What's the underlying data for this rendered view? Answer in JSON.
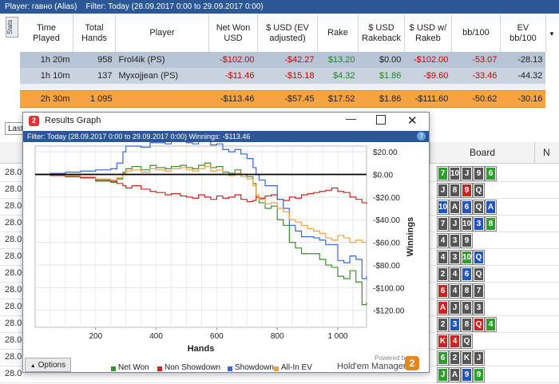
{
  "topbar": {
    "player_label": "Player:",
    "player_value": "гавно (Alias)",
    "filter_label": "Filter:",
    "filter_value": "Today (28.09.2017 0:00 to 29.09.2017 0:00)"
  },
  "stats_tab": "Stats",
  "table": {
    "headers": [
      "Time Played",
      "Total Hands",
      "Player",
      "Net Won USD",
      "$ USD (EV adjusted)",
      "Rake",
      "$ USD Rakeback",
      "$ USD w/ Rakeb",
      "bb/100",
      "EV bb/100"
    ],
    "rows": [
      [
        "1h 20m",
        "958",
        "Frol4ik (PS)",
        "-$102.00",
        "-$42.27",
        "$13.20",
        "$0.00",
        "-$102.00",
        "-53.07",
        "-28.13"
      ],
      [
        "1h 10m",
        "137",
        "Myxojjean (PS)",
        "-$11.46",
        "-$15.18",
        "$4.32",
        "$1.86",
        "-$9.60",
        "-33.46",
        "-44.32"
      ]
    ],
    "total": [
      "2h 30m",
      "1 095",
      "",
      "-$113.46",
      "-$57.45",
      "$17.52",
      "$1.86",
      "-$111.60",
      "-50.62",
      "-30.16"
    ]
  },
  "lower": {
    "last_tab": "Last",
    "board_header": "Board",
    "n_header": "N",
    "row_labels": [
      "28.0",
      "28.0",
      "28.0",
      "28.0",
      "28.0",
      "28.0",
      "28.0",
      "28.0",
      "28.0",
      "28.0",
      "28.0",
      "28.0",
      "28.0"
    ],
    "boards": [
      [
        [
          "7",
          "g"
        ],
        [
          "10",
          "k"
        ],
        [
          "J",
          "k"
        ],
        [
          "9",
          "k"
        ],
        [
          "6",
          "g"
        ]
      ],
      [
        [
          "J",
          "k"
        ],
        [
          "8",
          "k"
        ],
        [
          "9",
          "r"
        ],
        [
          "Q",
          "k"
        ]
      ],
      [
        [
          "10",
          "b"
        ],
        [
          "A",
          "k"
        ],
        [
          "6",
          "b"
        ],
        [
          "Q",
          "k"
        ],
        [
          "A",
          "b"
        ]
      ],
      [
        [
          "7",
          "k"
        ],
        [
          "J",
          "k"
        ],
        [
          "10",
          "k"
        ],
        [
          "3",
          "b"
        ],
        [
          "8",
          "g"
        ]
      ],
      [
        [
          "4",
          "k"
        ],
        [
          "3",
          "k"
        ],
        [
          "9",
          "k"
        ]
      ],
      [
        [
          "4",
          "k"
        ],
        [
          "3",
          "k"
        ],
        [
          "10",
          "g"
        ],
        [
          "Q",
          "b"
        ]
      ],
      [
        [
          "2",
          "k"
        ],
        [
          "4",
          "k"
        ],
        [
          "6",
          "b"
        ],
        [
          "Q",
          "k"
        ]
      ],
      [
        [
          "6",
          "r"
        ],
        [
          "4",
          "k"
        ],
        [
          "8",
          "k"
        ],
        [
          "7",
          "k"
        ]
      ],
      [
        [
          "A",
          "r"
        ],
        [
          "J",
          "k"
        ],
        [
          "6",
          "k"
        ],
        [
          "3",
          "k"
        ]
      ],
      [
        [
          "2",
          "k"
        ],
        [
          "3",
          "b"
        ],
        [
          "8",
          "k"
        ],
        [
          "Q",
          "r"
        ],
        [
          "4",
          "g"
        ]
      ],
      [
        [
          "K",
          "r"
        ],
        [
          "4",
          "r"
        ],
        [
          "Q",
          "k"
        ]
      ],
      [
        [
          "6",
          "g"
        ],
        [
          "2",
          "k"
        ],
        [
          "K",
          "k"
        ],
        [
          "J",
          "k"
        ]
      ],
      [
        [
          "J",
          "g"
        ],
        [
          "A",
          "k"
        ],
        [
          "9",
          "b"
        ],
        [
          "9",
          "g"
        ]
      ]
    ]
  },
  "dialog": {
    "title": "Results Graph",
    "filter_text": "Filter: Today (28.09.2017 0:00 to 29.09.2017 0:00) Winnings: -$113.46",
    "options_label": "Options",
    "powered_by": "Powered by",
    "brand": "Hold'em Manager",
    "brand_badge": "2"
  },
  "chart_data": {
    "type": "line",
    "xlabel": "Hands",
    "ylabel": "Winnings",
    "xlim": [
      0,
      1095
    ],
    "ylim": [
      -135,
      25
    ],
    "xticks": [
      200,
      400,
      600,
      800,
      1000
    ],
    "xtick_labels": [
      "200",
      "400",
      "600",
      "800",
      "1 000"
    ],
    "yticks": [
      20,
      0,
      -20,
      -40,
      -60,
      -80,
      -100,
      -120
    ],
    "ytick_labels": [
      "$20.00",
      "$0.00",
      "-$20.00",
      "-$40.00",
      "-$60.00",
      "-$80.00",
      "-$100.00",
      "-$120.00"
    ],
    "grid": true,
    "legend_position": "bottom",
    "x": [
      0,
      50,
      100,
      150,
      200,
      250,
      270,
      290,
      300,
      320,
      350,
      380,
      400,
      430,
      450,
      480,
      500,
      520,
      540,
      560,
      580,
      600,
      620,
      640,
      660,
      680,
      700,
      720,
      730,
      740,
      760,
      780,
      800,
      820,
      840,
      860,
      880,
      900,
      920,
      940,
      960,
      980,
      1000,
      1020,
      1040,
      1060,
      1080,
      1095
    ],
    "series": [
      {
        "name": "Net Won",
        "color": "#3a8f2a",
        "values": [
          0,
          0,
          -2,
          -3,
          -6,
          -7,
          -4,
          2,
          5,
          7,
          4,
          8,
          6,
          5,
          7,
          8,
          6,
          5,
          8,
          10,
          6,
          7,
          2,
          1,
          4,
          0,
          -2,
          -8,
          -20,
          -25,
          -30,
          -28,
          -40,
          -45,
          -60,
          -65,
          -70,
          -70,
          -70,
          -75,
          -80,
          -82,
          -90,
          -92,
          -85,
          -95,
          -115,
          -113
        ]
      },
      {
        "name": "Non Showdown",
        "color": "#d82020",
        "values": [
          0,
          -1,
          -2,
          -3,
          -5,
          -6,
          -8,
          -10,
          -12,
          -10,
          -13,
          -15,
          -16,
          -18,
          -17,
          -19,
          -20,
          -21,
          -18,
          -20,
          -22,
          -19,
          -21,
          -20,
          -18,
          -22,
          -24,
          -23,
          -20,
          -21,
          -19,
          -18,
          -22,
          -23,
          -20,
          -21,
          -18,
          -17,
          -16,
          -15,
          -14,
          -12,
          -15,
          -16,
          -20,
          -22,
          -25,
          -26
        ]
      },
      {
        "name": "Showdown",
        "color": "#3a66d8",
        "values": [
          0,
          1,
          2,
          3,
          4,
          5,
          10,
          20,
          25,
          25,
          24,
          28,
          28,
          27,
          30,
          29,
          28,
          27,
          30,
          31,
          26,
          27,
          22,
          20,
          22,
          18,
          14,
          6,
          0,
          -5,
          -10,
          -10,
          -22,
          -30,
          -45,
          -50,
          -55,
          -55,
          -56,
          -58,
          -62,
          -62,
          -76,
          -78,
          -72,
          -75,
          -92,
          -90
        ]
      },
      {
        "name": "All-In EV",
        "color": "#f0a040",
        "values": [
          0,
          0,
          -1,
          -2,
          -4,
          -5,
          -3,
          1,
          3,
          4,
          2,
          5,
          4,
          3,
          5,
          6,
          4,
          3,
          5,
          7,
          3,
          4,
          0,
          -1,
          1,
          -2,
          -4,
          -10,
          -18,
          -22,
          -26,
          -25,
          -30,
          -33,
          -40,
          -42,
          -45,
          -48,
          -50,
          -52,
          -56,
          -58,
          -54,
          -56,
          -60,
          -58,
          -60,
          -60
        ]
      }
    ]
  }
}
